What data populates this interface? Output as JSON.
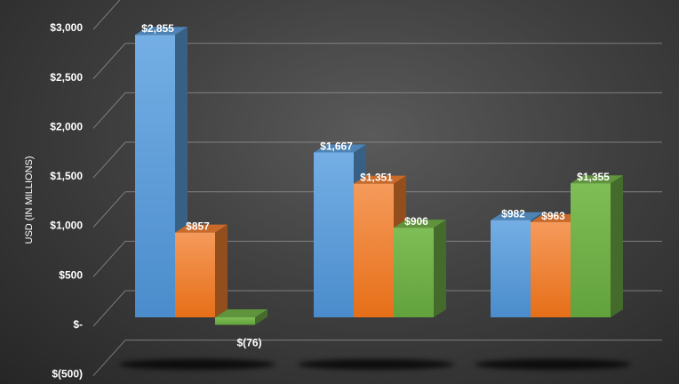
{
  "chart_data": {
    "type": "bar",
    "style": "3d-clustered-column",
    "title": "",
    "xlabel": "",
    "ylabel": "USD (IN MILLIONS)",
    "ylim": [
      -500,
      3000
    ],
    "yticks": [
      -500,
      0,
      500,
      1000,
      1500,
      2000,
      2500,
      3000
    ],
    "ytick_labels": [
      "$(500)",
      "$-",
      "$500",
      "$1,000",
      "$1,500",
      "$2,000",
      "$2,500",
      "$3,000"
    ],
    "grid": true,
    "legend": "none",
    "categories": [
      "",
      "",
      ""
    ],
    "series": [
      {
        "color": "#5b9bd5",
        "values": [
          2855,
          1667,
          982
        ],
        "labels": [
          "$2,855",
          "$1,667",
          "$982"
        ]
      },
      {
        "color": "#ed7d31",
        "values": [
          857,
          1351,
          963
        ],
        "labels": [
          "$857",
          "$1,351",
          "$963"
        ]
      },
      {
        "color": "#70ad47",
        "values": [
          -76,
          906,
          1355
        ],
        "labels": [
          "$(76)",
          "$906",
          "$1,355"
        ]
      }
    ]
  }
}
